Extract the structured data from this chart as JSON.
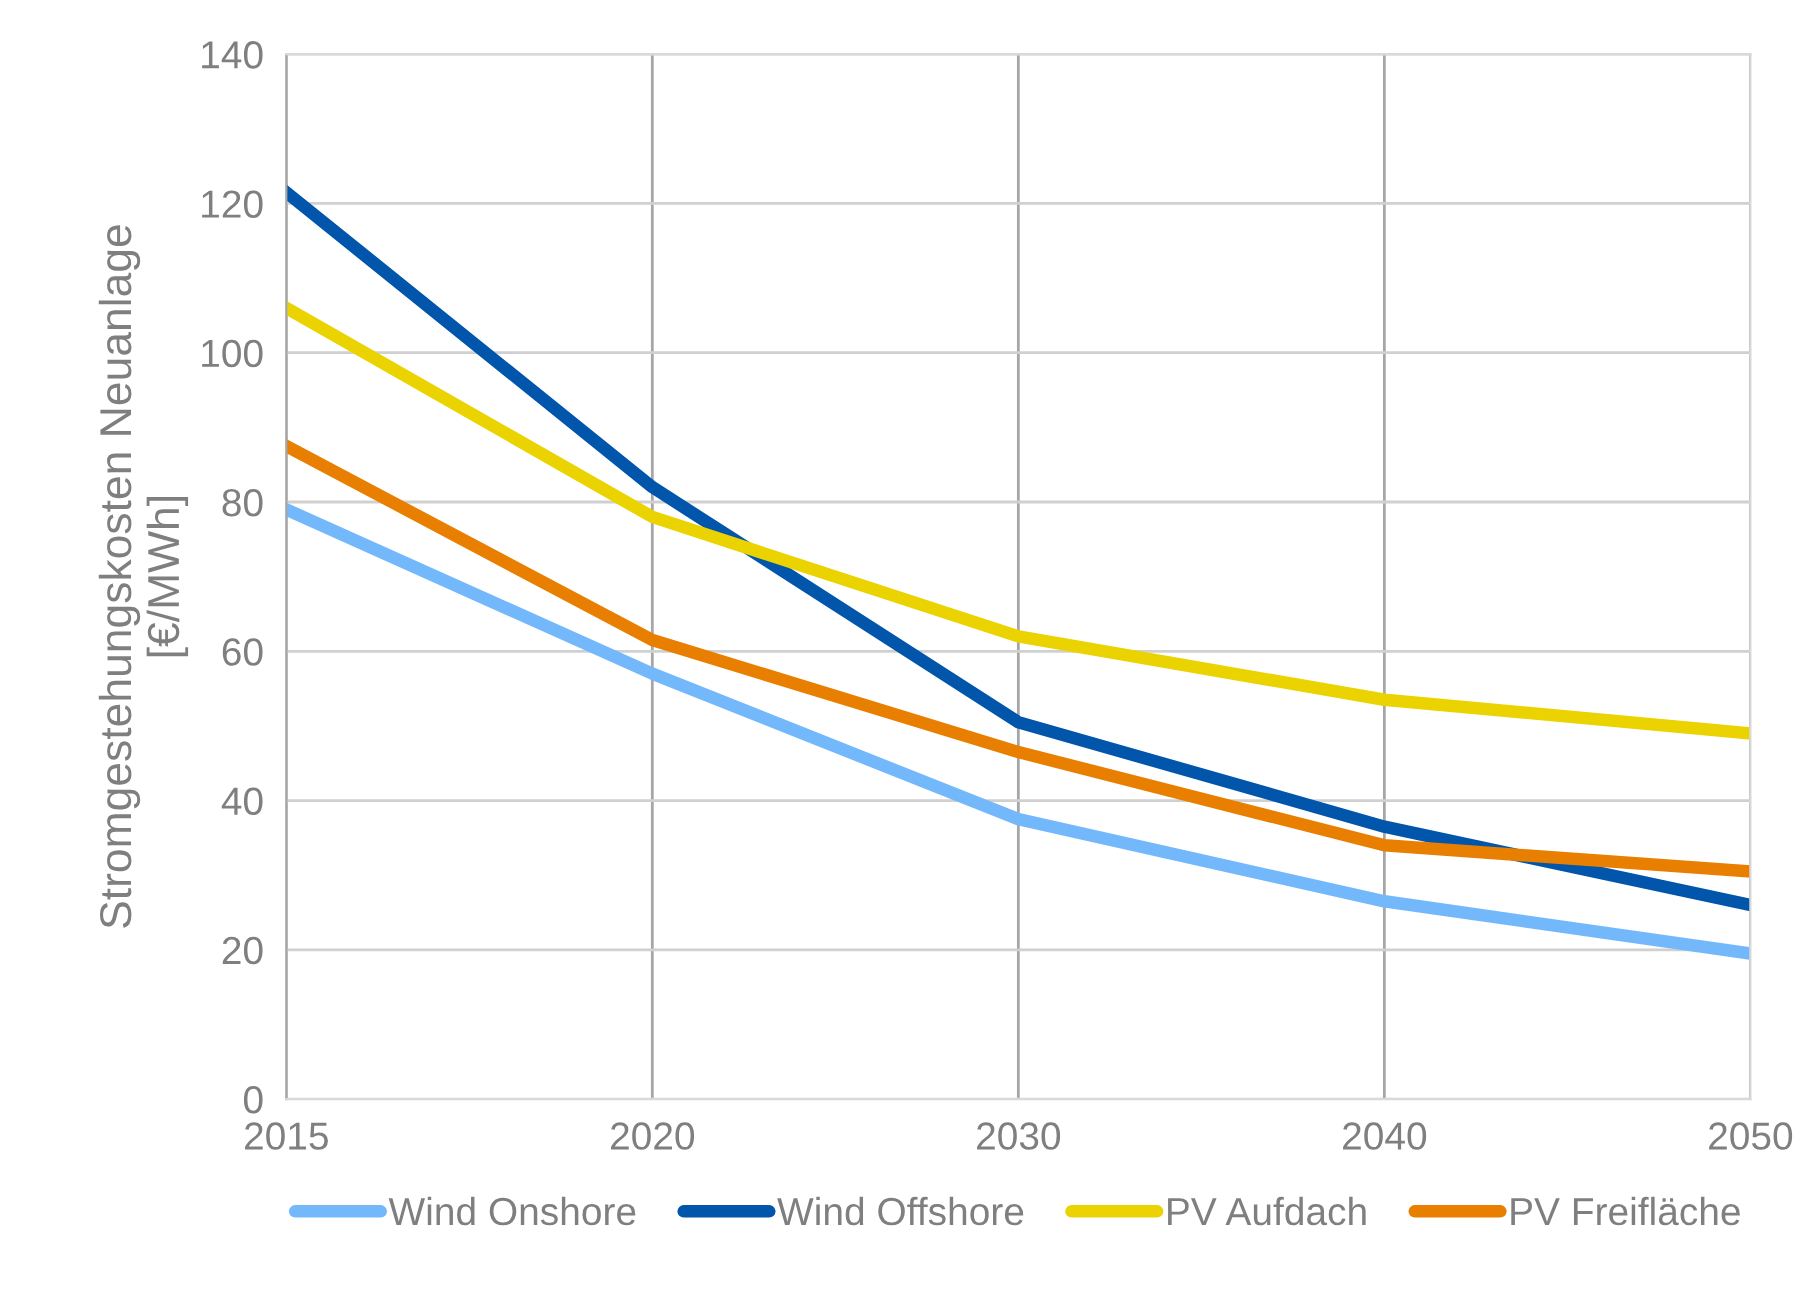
{
  "chart_data": {
    "type": "line",
    "ylabel": "Stromgestehungskosten Neuanlage\n[€/MWh]",
    "categories": [
      "2015",
      "2020",
      "2030",
      "2040",
      "2050"
    ],
    "series": [
      {
        "name": "Wind Onshore",
        "color": "#74b8fc",
        "values": [
          79,
          57,
          37.5,
          26.5,
          19.5
        ]
      },
      {
        "name": "Wind Offshore",
        "color": "#0156ab",
        "values": [
          121.5,
          82,
          50.5,
          36.5,
          26
        ]
      },
      {
        "name": "PV Aufdach",
        "color": "#ead300",
        "values": [
          106,
          78,
          62,
          53.5,
          49
        ]
      },
      {
        "name": "PV Freifläche",
        "color": "#e97f00",
        "values": [
          87.5,
          61.5,
          46.5,
          34,
          30.5
        ]
      }
    ],
    "ylim": [
      0,
      140
    ],
    "yticks": [
      0,
      20,
      40,
      60,
      80,
      100,
      120,
      140
    ],
    "grid": true,
    "legend": "bottom",
    "marker": "none",
    "line_style": "solid"
  }
}
